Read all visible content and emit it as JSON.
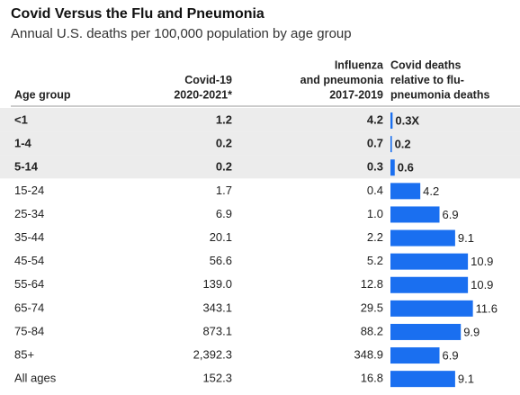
{
  "title": "Covid Versus the Flu and Pneumonia",
  "subtitle": "Annual U.S. deaths per 100,000 population by age group",
  "columns": [
    {
      "lines": [
        "Age group"
      ]
    },
    {
      "lines": [
        "Covid-19",
        "2020-2021*"
      ]
    },
    {
      "lines": [
        "Influenza",
        "and pneumonia",
        "2017-2019"
      ]
    },
    {
      "lines": [
        "Covid deaths",
        "relative to flu-",
        "pneumonia deaths"
      ]
    }
  ],
  "bar_color": "#1a6ff0",
  "rows": [
    {
      "age": "<1",
      "covid": "1.2",
      "flu": "4.2",
      "ratio": 0.3,
      "ratio_label": "0.3X",
      "highlight": true
    },
    {
      "age": "1-4",
      "covid": "0.2",
      "flu": "0.7",
      "ratio": 0.2,
      "highlight": true
    },
    {
      "age": "5-14",
      "covid": "0.2",
      "flu": "0.3",
      "ratio": 0.6,
      "highlight": true
    },
    {
      "age": "15-24",
      "covid": "1.7",
      "flu": "0.4",
      "ratio": 4.2
    },
    {
      "age": "25-34",
      "covid": "6.9",
      "flu": "1.0",
      "ratio": 6.9
    },
    {
      "age": "35-44",
      "covid": "20.1",
      "flu": "2.2",
      "ratio": 9.1
    },
    {
      "age": "45-54",
      "covid": "56.6",
      "flu": "5.2",
      "ratio": 10.9
    },
    {
      "age": "55-64",
      "covid": "139.0",
      "flu": "12.8",
      "ratio": 10.9
    },
    {
      "age": "65-74",
      "covid": "343.1",
      "flu": "29.5",
      "ratio": 11.6
    },
    {
      "age": "75-84",
      "covid": "873.1",
      "flu": "88.2",
      "ratio": 9.9
    },
    {
      "age": "85+",
      "covid": "2,392.3",
      "flu": "348.9",
      "ratio": 6.9
    },
    {
      "age": "All ages",
      "covid": "152.3",
      "flu": "16.8",
      "ratio": 9.1
    }
  ]
}
